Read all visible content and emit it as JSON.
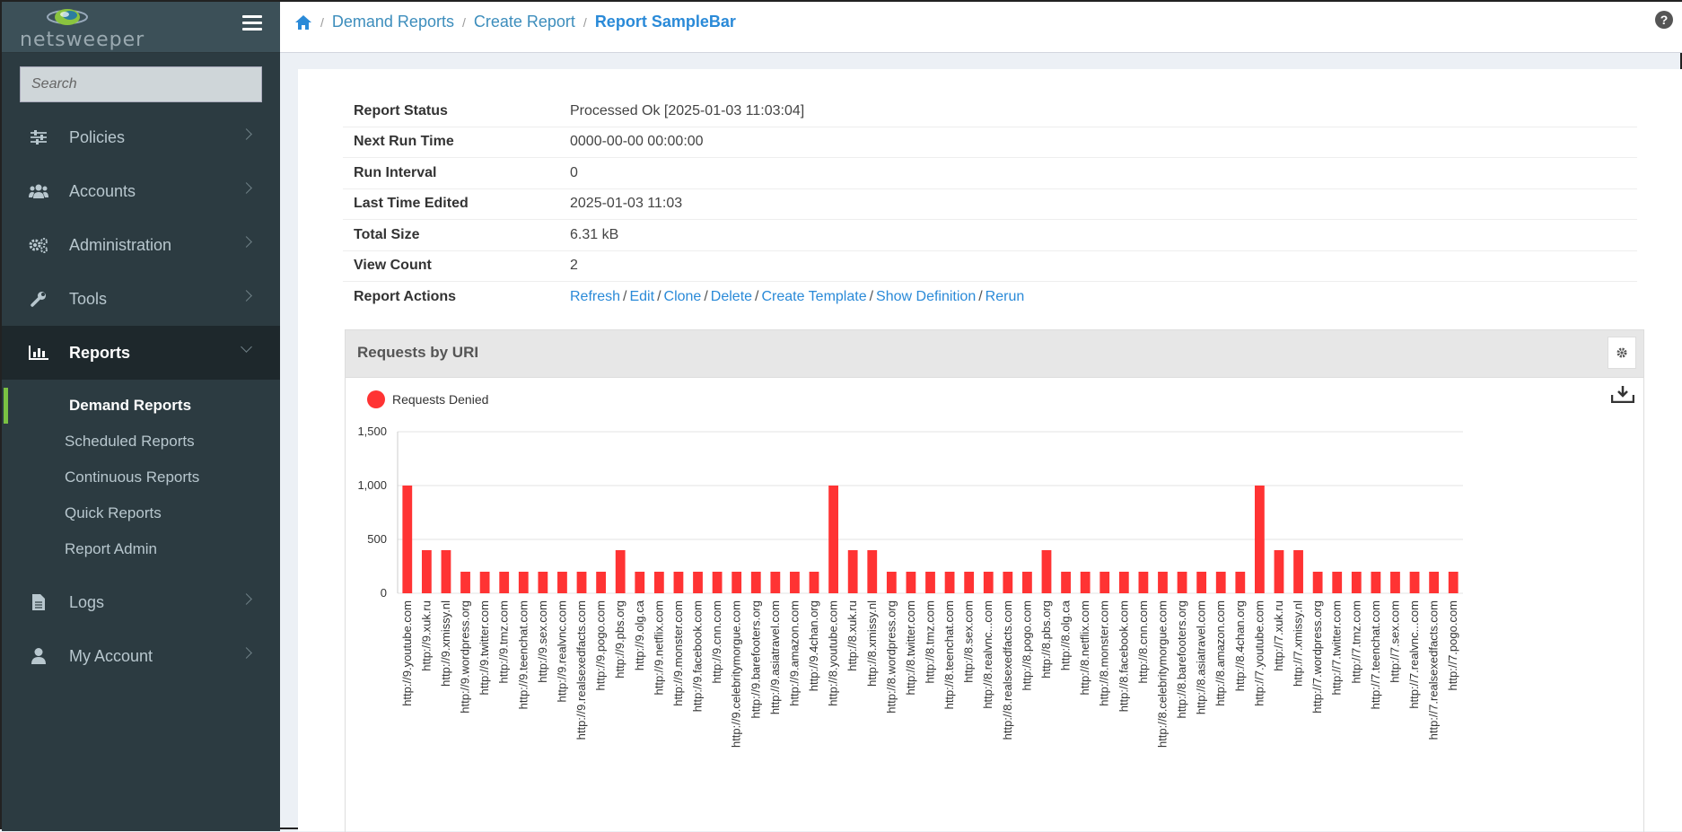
{
  "app": {
    "logo_text": "netsweeper"
  },
  "sidebar": {
    "search_placeholder": "Search",
    "items": [
      {
        "label": "Policies",
        "icon": "sliders-icon"
      },
      {
        "label": "Accounts",
        "icon": "users-icon"
      },
      {
        "label": "Administration",
        "icon": "gears-icon"
      },
      {
        "label": "Tools",
        "icon": "wrench-icon"
      },
      {
        "label": "Reports",
        "icon": "bar-chart-icon"
      },
      {
        "label": "Logs",
        "icon": "file-icon"
      },
      {
        "label": "My Account",
        "icon": "user-icon"
      }
    ],
    "reports_sub": [
      {
        "label": "Demand Reports"
      },
      {
        "label": "Scheduled Reports"
      },
      {
        "label": "Continuous Reports"
      },
      {
        "label": "Quick Reports"
      },
      {
        "label": "Report Admin"
      }
    ]
  },
  "breadcrumb": {
    "home_icon": "home-icon",
    "items": [
      "Demand Reports",
      "Create Report"
    ],
    "current": "Report SampleBar",
    "sep": "/"
  },
  "report_info": {
    "rows": [
      {
        "label": "Report Status",
        "value": "Processed Ok [2025-01-03 11:03:04]"
      },
      {
        "label": "Next Run Time",
        "value": "0000-00-00 00:00:00"
      },
      {
        "label": "Run Interval",
        "value": "0"
      },
      {
        "label": "Last Time Edited",
        "value": "2025-01-03 11:03"
      },
      {
        "label": "Total Size",
        "value": "6.31 kB"
      },
      {
        "label": "View Count",
        "value": "2"
      }
    ],
    "actions_label": "Report Actions",
    "actions": [
      "Refresh",
      "Edit",
      "Clone",
      "Delete",
      "Create Template",
      "Show Definition",
      "Rerun"
    ]
  },
  "panel": {
    "title": "Requests by URI"
  },
  "colors": {
    "bar": "#ff3333",
    "accent": "#2a8ad8",
    "active_marker": "#7ac143"
  },
  "chart_data": {
    "type": "bar",
    "title": "Requests by URI",
    "xlabel": "",
    "ylabel": "",
    "ylim": [
      0,
      1500
    ],
    "yticks": [
      0,
      500,
      1000,
      1500
    ],
    "ytick_labels": [
      "0",
      "500",
      "1,000",
      "1,500"
    ],
    "grid": true,
    "legend_position": "top-left",
    "categories": [
      "http://9.youtube.com",
      "http://9.xuk.ru",
      "http://9.xmissy.nl",
      "http://9.wordpress.org",
      "http://9.twitter.com",
      "http://9.tmz.com",
      "http://9.teenchat.com",
      "http://9.sex.com",
      "http://9.realvnc.com",
      "http://9.realsexedfacts.com",
      "http://9.pogo.com",
      "http://9.pbs.org",
      "http://9.olg.ca",
      "http://9.netflix.com",
      "http://9.monster.com",
      "http://9.facebook.com",
      "http://9.cnn.com",
      "http://9.celebritymorgue.com",
      "http://9.barefooters.org",
      "http://9.asiatravel.com",
      "http://9.amazon.com",
      "http://9.4chan.org",
      "http://8.youtube.com",
      "http://8.xuk.ru",
      "http://8.xmissy.nl",
      "http://8.wordpress.org",
      "http://8.twitter.com",
      "http://8.tmz.com",
      "http://8.teenchat.com",
      "http://8.sex.com",
      "http://8.realvnc...com",
      "http://8.realsexedfacts.com",
      "http://8.pogo.com",
      "http://8.pbs.org",
      "http://8.olg.ca",
      "http://8.netflix.com",
      "http://8.monster.com",
      "http://8.facebook.com",
      "http://8.cnn.com",
      "http://8.celebritymorgue.com",
      "http://8.barefooters.org",
      "http://8.asiatravel.com",
      "http://8.amazon.com",
      "http://8.4chan.org",
      "http://7.youtube.com",
      "http://7.xuk.ru",
      "http://7.xmissy.nl",
      "http://7.wordpress.org",
      "http://7.twitter.com",
      "http://7.tmz.com",
      "http://7.teenchat.com",
      "http://7.sex.com",
      "http://7.realvnc...com",
      "http://7.realsexedfacts.com",
      "http://7.pogo.com"
    ],
    "series": [
      {
        "name": "Requests Denied",
        "color": "#ff3333",
        "values": [
          1000,
          400,
          400,
          200,
          200,
          200,
          200,
          200,
          200,
          200,
          200,
          400,
          200,
          200,
          200,
          200,
          200,
          200,
          200,
          200,
          200,
          200,
          1000,
          400,
          400,
          200,
          200,
          200,
          200,
          200,
          200,
          200,
          200,
          400,
          200,
          200,
          200,
          200,
          200,
          200,
          200,
          200,
          200,
          200,
          1000,
          400,
          400,
          200,
          200,
          200,
          200,
          200,
          200,
          200,
          200
        ]
      }
    ]
  }
}
